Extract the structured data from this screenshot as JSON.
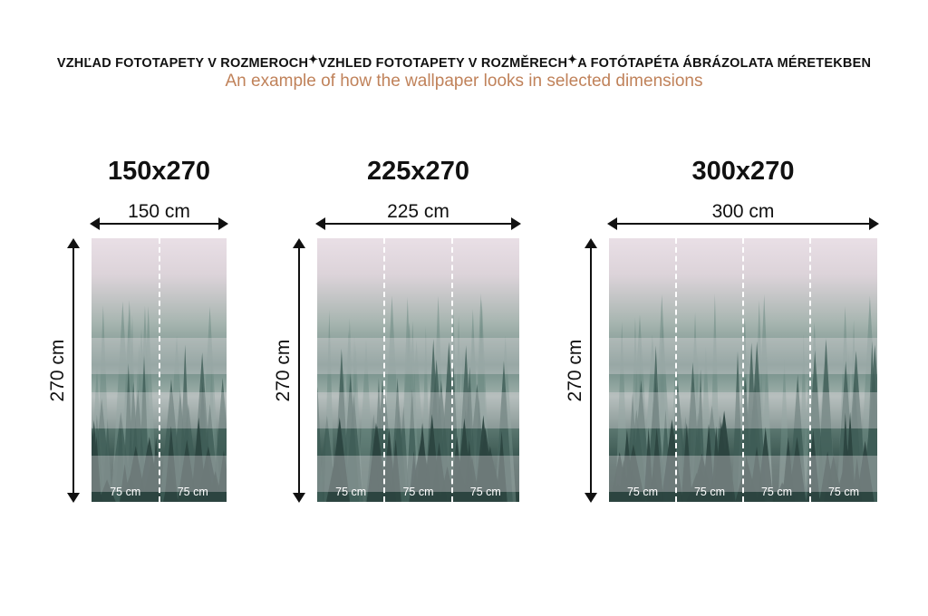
{
  "header": {
    "line_sk": "VZHĽAD FOTOTAPETY V ROZMEROCH",
    "line_cz": "VZHLED FOTOTAPETY V ROZMĚRECH",
    "line_hu": "A FOTÓTAPÉTA ÁBRÁZOLATA MÉRETEKBEN",
    "separator": "✦",
    "subtitle": "An example of how the wallpaper looks in selected dimensions",
    "subtitle_color": "#c0825a"
  },
  "panels": [
    {
      "title": "150x270",
      "width_label": "150 cm",
      "height_label": "270 cm",
      "panel_labels": [
        "75 cm",
        "75 cm"
      ]
    },
    {
      "title": "225x270",
      "width_label": "225 cm",
      "height_label": "270 cm",
      "panel_labels": [
        "75 cm",
        "75 cm",
        "75 cm"
      ]
    },
    {
      "title": "300x270",
      "width_label": "300 cm",
      "height_label": "270 cm",
      "panel_labels": [
        "75 cm",
        "75 cm",
        "75 cm",
        "75 cm"
      ]
    }
  ],
  "image_subject": "misty-forest"
}
